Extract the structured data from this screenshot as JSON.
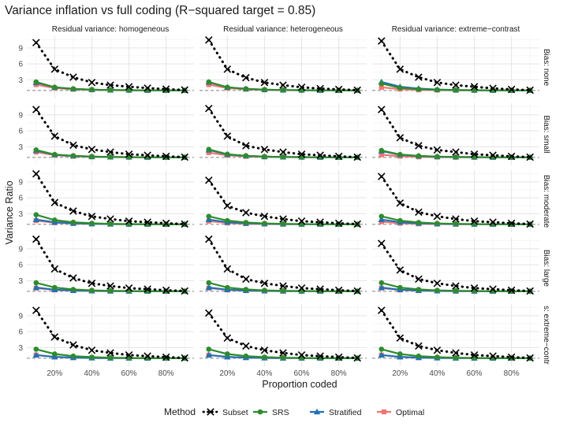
{
  "chart_data": {
    "type": "line",
    "title": "Variance inflation vs full coding (R−squared target = 0.85)",
    "xlabel": "Proportion coded",
    "ylabel": "Variance Ratio",
    "x": [
      0.1,
      0.2,
      0.3,
      0.4,
      0.5,
      0.6,
      0.7,
      0.8,
      0.9
    ],
    "x_ticks": [
      0.2,
      0.4,
      0.6,
      0.8
    ],
    "x_tick_labels": [
      "20%",
      "40%",
      "60%",
      "80%"
    ],
    "xlim": [
      0.05,
      0.95
    ],
    "y_ticks": [
      3,
      6,
      9
    ],
    "y_tick_labels": [
      "3",
      "6",
      "9"
    ],
    "ylim": [
      -0.5,
      11.2
    ],
    "reference_line": 1,
    "columns": [
      "Residual variance: homogeneous",
      "Residual variance: heterogeneous",
      "Residual variance: extreme−contrast"
    ],
    "rows": [
      "Bias: none",
      "Bias: small",
      "Bias: moderate",
      "Bias: large",
      "s: extreme−contr"
    ],
    "legend_title": "Method",
    "legend_position": "bottom",
    "methods": [
      {
        "name": "Subset",
        "color": "#000000",
        "marker": "x",
        "linestyle": "dotted"
      },
      {
        "name": "SRS",
        "color": "#2e8b2e",
        "marker": "circle",
        "linestyle": "solid"
      },
      {
        "name": "Stratified",
        "color": "#2171b5",
        "marker": "triangle",
        "linestyle": "solid"
      },
      {
        "name": "Optimal",
        "color": "#f07470",
        "marker": "square",
        "linestyle": "solid"
      }
    ],
    "panels": [
      [
        {
          "Subset": [
            10,
            5,
            3.5,
            2.5,
            2,
            1.7,
            1.45,
            1.25,
            1.1
          ],
          "SRS": [
            2.6,
            1.6,
            1.3,
            1.15,
            1.08,
            1.05,
            1.03,
            1.01,
            1.0
          ],
          "Stratified": [
            2.5,
            1.6,
            1.3,
            1.15,
            1.08,
            1.05,
            1.03,
            1.01,
            1.0
          ],
          "Optimal": [
            2.1,
            1.45,
            1.22,
            1.12,
            1.06,
            1.04,
            1.02,
            1.01,
            1.0
          ]
        },
        {
          "Subset": [
            10.5,
            5,
            3.4,
            2.5,
            2,
            1.6,
            1.35,
            1.2,
            1.05
          ],
          "SRS": [
            2.6,
            1.6,
            1.3,
            1.15,
            1.08,
            1.05,
            1.03,
            1.01,
            1.0
          ],
          "Stratified": [
            2.55,
            1.6,
            1.3,
            1.15,
            1.08,
            1.05,
            1.03,
            1.01,
            1.0
          ],
          "Optimal": [
            2.1,
            1.45,
            1.22,
            1.12,
            1.06,
            1.04,
            1.02,
            1.01,
            1.0
          ]
        },
        {
          "Subset": [
            10.3,
            5,
            3.5,
            2.5,
            2,
            1.7,
            1.4,
            1.2,
            1.05
          ],
          "SRS": [
            2.3,
            1.5,
            1.25,
            1.12,
            1.06,
            1.04,
            1.02,
            1.01,
            1.0
          ],
          "Stratified": [
            2.6,
            1.7,
            1.35,
            1.18,
            1.1,
            1.06,
            1.03,
            1.01,
            1.0
          ],
          "Optimal": [
            1.6,
            1.25,
            1.12,
            1.07,
            1.04,
            1.02,
            1.01,
            1.0,
            1.0
          ]
        }
      ],
      [
        {
          "Subset": [
            10,
            5,
            3.3,
            2.5,
            2,
            1.6,
            1.4,
            1.2,
            1.05
          ],
          "SRS": [
            2.4,
            1.55,
            1.3,
            1.15,
            1.08,
            1.05,
            1.03,
            1.01,
            1.0
          ],
          "Stratified": [
            2.3,
            1.5,
            1.28,
            1.14,
            1.08,
            1.05,
            1.03,
            1.01,
            1.0
          ],
          "Optimal": [
            2.0,
            1.42,
            1.22,
            1.12,
            1.06,
            1.04,
            1.02,
            1.01,
            1.0
          ]
        },
        {
          "Subset": [
            10.2,
            5,
            3.2,
            2.5,
            2,
            1.6,
            1.4,
            1.2,
            1.05
          ],
          "SRS": [
            2.5,
            1.6,
            1.3,
            1.15,
            1.08,
            1.05,
            1.03,
            1.01,
            1.0
          ],
          "Stratified": [
            2.4,
            1.55,
            1.28,
            1.14,
            1.08,
            1.05,
            1.03,
            1.01,
            1.0
          ],
          "Optimal": [
            1.9,
            1.4,
            1.2,
            1.1,
            1.06,
            1.04,
            1.02,
            1.01,
            1.0
          ]
        },
        {
          "Subset": [
            10,
            4.7,
            3.2,
            2.4,
            2,
            1.6,
            1.4,
            1.2,
            1.05
          ],
          "SRS": [
            2.3,
            1.55,
            1.28,
            1.14,
            1.07,
            1.05,
            1.03,
            1.01,
            1.0
          ],
          "Stratified": [
            2.2,
            1.5,
            1.26,
            1.13,
            1.07,
            1.05,
            1.03,
            1.01,
            1.0
          ],
          "Optimal": [
            1.5,
            1.22,
            1.1,
            1.06,
            1.03,
            1.02,
            1.01,
            1.0,
            1.0
          ]
        }
      ],
      [
        {
          "Subset": [
            10.5,
            5.1,
            3.5,
            2.5,
            2,
            1.6,
            1.4,
            1.2,
            1.05
          ],
          "SRS": [
            2.8,
            1.8,
            1.4,
            1.2,
            1.1,
            1.06,
            1.03,
            1.01,
            1.0
          ],
          "Stratified": [
            1.9,
            1.4,
            1.2,
            1.1,
            1.05,
            1.03,
            1.02,
            1.01,
            1.0
          ],
          "Optimal": [
            1.7,
            1.3,
            1.15,
            1.08,
            1.04,
            1.02,
            1.01,
            1.0,
            1.0
          ]
        },
        {
          "Subset": [
            9.3,
            4.5,
            3.2,
            2.5,
            2,
            1.6,
            1.4,
            1.2,
            1.05
          ],
          "SRS": [
            2.5,
            1.7,
            1.35,
            1.18,
            1.1,
            1.06,
            1.03,
            1.01,
            1.0
          ],
          "Stratified": [
            1.9,
            1.4,
            1.2,
            1.1,
            1.05,
            1.03,
            1.02,
            1.01,
            1.0
          ],
          "Optimal": [
            1.6,
            1.25,
            1.12,
            1.06,
            1.03,
            1.02,
            1.01,
            1.0,
            1.0
          ]
        },
        {
          "Subset": [
            10,
            5,
            3.3,
            2.5,
            2,
            1.6,
            1.4,
            1.2,
            1.05
          ],
          "SRS": [
            2.5,
            1.7,
            1.35,
            1.18,
            1.1,
            1.06,
            1.03,
            1.01,
            1.0
          ],
          "Stratified": [
            1.9,
            1.4,
            1.2,
            1.1,
            1.05,
            1.03,
            1.02,
            1.01,
            1.0
          ],
          "Optimal": [
            1.5,
            1.2,
            1.1,
            1.05,
            1.03,
            1.02,
            1.01,
            1.0,
            1.0
          ]
        }
      ],
      [
        {
          "Subset": [
            10.8,
            5.2,
            3.5,
            2.5,
            2,
            1.6,
            1.4,
            1.2,
            1.05
          ],
          "SRS": [
            2.6,
            1.7,
            1.35,
            1.18,
            1.1,
            1.06,
            1.03,
            1.01,
            1.0
          ],
          "Stratified": [
            1.7,
            1.3,
            1.15,
            1.08,
            1.04,
            1.02,
            1.01,
            1.0,
            1.0
          ],
          "Optimal": [
            1.6,
            1.25,
            1.12,
            1.06,
            1.03,
            1.02,
            1.01,
            1.0,
            1.0
          ]
        },
        {
          "Subset": [
            10.8,
            5.2,
            3.3,
            2.5,
            2,
            1.6,
            1.4,
            1.2,
            1.05
          ],
          "SRS": [
            2.6,
            1.7,
            1.35,
            1.18,
            1.1,
            1.06,
            1.03,
            1.01,
            1.0
          ],
          "Stratified": [
            1.7,
            1.3,
            1.15,
            1.08,
            1.04,
            1.02,
            1.01,
            1.0,
            1.0
          ],
          "Optimal": [
            1.6,
            1.25,
            1.12,
            1.06,
            1.03,
            1.02,
            1.01,
            1.0,
            1.0
          ]
        },
        {
          "Subset": [
            10,
            5,
            3.3,
            2.5,
            2,
            1.6,
            1.4,
            1.2,
            1.05
          ],
          "SRS": [
            2.6,
            1.7,
            1.35,
            1.18,
            1.1,
            1.06,
            1.03,
            1.01,
            1.0
          ],
          "Stratified": [
            1.7,
            1.3,
            1.15,
            1.08,
            1.04,
            1.02,
            1.01,
            1.0,
            1.0
          ],
          "Optimal": [
            1.6,
            1.25,
            1.12,
            1.06,
            1.03,
            1.02,
            1.01,
            1.0,
            1.0
          ]
        }
      ],
      [
        {
          "Subset": [
            10,
            5,
            3.5,
            2.5,
            2,
            1.6,
            1.4,
            1.2,
            1.05
          ],
          "SRS": [
            2.7,
            1.8,
            1.4,
            1.2,
            1.1,
            1.06,
            1.03,
            1.01,
            1.0
          ],
          "Stratified": [
            1.6,
            1.25,
            1.12,
            1.06,
            1.03,
            1.02,
            1.01,
            1.0,
            1.0
          ],
          "Optimal": [
            1.6,
            1.25,
            1.12,
            1.06,
            1.03,
            1.02,
            1.01,
            1.0,
            1.0
          ]
        },
        {
          "Subset": [
            9.5,
            4.8,
            3.3,
            2.5,
            2,
            1.6,
            1.4,
            1.2,
            1.05
          ],
          "SRS": [
            2.7,
            1.8,
            1.4,
            1.2,
            1.1,
            1.06,
            1.03,
            1.01,
            1.0
          ],
          "Stratified": [
            1.6,
            1.25,
            1.12,
            1.06,
            1.03,
            1.02,
            1.01,
            1.0,
            1.0
          ],
          "Optimal": [
            1.6,
            1.25,
            1.12,
            1.06,
            1.03,
            1.02,
            1.01,
            1.0,
            1.0
          ]
        },
        {
          "Subset": [
            10,
            4.8,
            3.3,
            2.5,
            2,
            1.6,
            1.4,
            1.2,
            1.05
          ],
          "SRS": [
            2.7,
            1.8,
            1.4,
            1.2,
            1.1,
            1.06,
            1.03,
            1.01,
            1.0
          ],
          "Stratified": [
            1.6,
            1.25,
            1.12,
            1.06,
            1.03,
            1.02,
            1.01,
            1.0,
            1.0
          ],
          "Optimal": [
            1.6,
            1.25,
            1.12,
            1.06,
            1.03,
            1.02,
            1.01,
            1.0,
            1.0
          ]
        }
      ]
    ]
  }
}
